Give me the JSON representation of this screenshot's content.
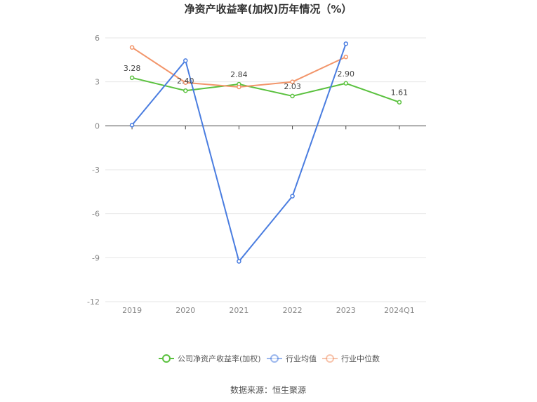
{
  "chart_data": {
    "type": "line",
    "title": "净资产收益率(加权)历年情况（%）",
    "categories": [
      "2019",
      "2020",
      "2021",
      "2022",
      "2023",
      "2024Q1"
    ],
    "ylim": [
      -12,
      6
    ],
    "yticks": [
      "6",
      "3",
      "0",
      "-3",
      "-6",
      "-9",
      "-12"
    ],
    "grid": true,
    "legend_position": "bottom",
    "series": [
      {
        "name": "公司净资产收益率(加权)",
        "color": "#5ac13e",
        "values": [
          3.28,
          2.4,
          2.84,
          2.03,
          2.9,
          1.61
        ],
        "labels": [
          "3.28",
          "2.40",
          "2.84",
          "2.03",
          "2.90",
          "1.61"
        ]
      },
      {
        "name": "行业均值",
        "color": "#4a7de0",
        "values": [
          0.05,
          4.45,
          -9.25,
          -4.8,
          5.6,
          null
        ]
      },
      {
        "name": "行业中位数",
        "color": "#f2956a",
        "values": [
          5.35,
          2.95,
          2.65,
          3.0,
          4.7,
          null
        ]
      }
    ],
    "source": "数据来源：恒生聚源"
  }
}
